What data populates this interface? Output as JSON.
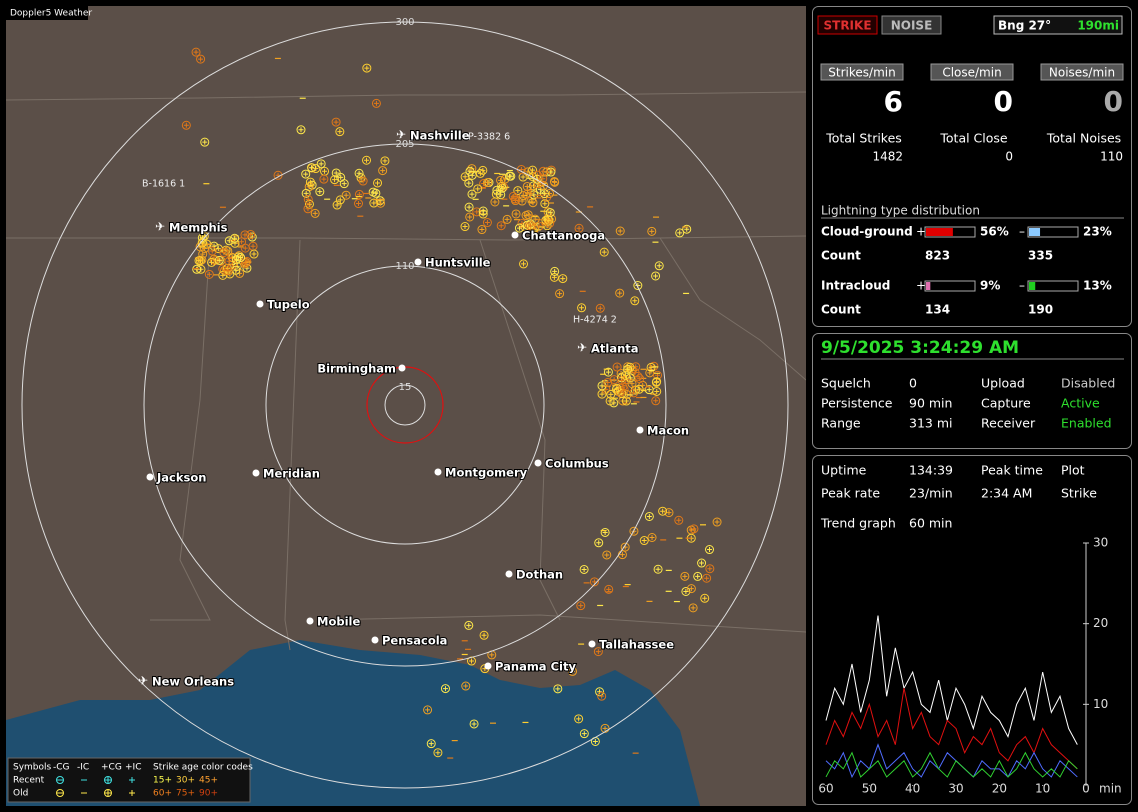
{
  "map": {
    "title": "Doppler5 Weather",
    "ring_labels": [
      "300",
      "205",
      "110",
      "15"
    ],
    "cities": [
      "Nashville",
      "Memphis",
      "Chattanooga",
      "Huntsville",
      "Tupelo",
      "Birmingham",
      "Atlanta",
      "Macon",
      "Jackson",
      "Meridian",
      "Montgomery",
      "Columbus",
      "Dothan",
      "Mobile",
      "Pensacola",
      "Panama City",
      "Tallahassee",
      "New Orleans"
    ],
    "stations": [
      "P-3382 6",
      "B-1616 1",
      "H-4274 2"
    ],
    "legend": {
      "symbols_header": "Symbols",
      "cols": [
        "-CG",
        "-IC",
        "+CG",
        "+IC"
      ],
      "age_header": "Strike age color codes",
      "rows": [
        {
          "label": "Recent",
          "ages": [
            "15+",
            "30+",
            "45+"
          ]
        },
        {
          "label": "Old",
          "ages": [
            "60+",
            "75+",
            "90+"
          ]
        }
      ]
    }
  },
  "panel": {
    "mode_buttons": [
      "STRIKE",
      "NOISE"
    ],
    "bearing": "Bng 27°",
    "range": "190mi",
    "rates": [
      {
        "label": "Strikes/min",
        "value": 6
      },
      {
        "label": "Close/min",
        "value": 0
      },
      {
        "label": "Noises/min",
        "value": 0
      }
    ],
    "totals": [
      {
        "label": "Total Strikes",
        "value": 1482
      },
      {
        "label": "Total Close",
        "value": 0
      },
      {
        "label": "Total Noises",
        "value": 110
      }
    ],
    "distribution": {
      "title": "Lightning type distribution",
      "count_label": "Count",
      "types": [
        {
          "label": "Cloud-ground",
          "pos": {
            "sign": "+",
            "share": {
              "value": 56,
              "label": "56%"
            },
            "count": 823
          },
          "neg": {
            "sign": "–",
            "share": {
              "value": 23,
              "label": "23%"
            },
            "count": 335
          }
        },
        {
          "label": "Intracloud",
          "pos": {
            "sign": "+",
            "share": {
              "value": 9,
              "label": "9%"
            },
            "count": 134
          },
          "neg": {
            "sign": "–",
            "share": {
              "value": 13,
              "label": "13%"
            },
            "count": 190
          }
        }
      ]
    }
  },
  "status": {
    "datetime": "9/5/2025 3:24:29 AM",
    "rows": [
      [
        "Squelch",
        "0",
        "Upload",
        "Disabled"
      ],
      [
        "Persistence",
        "90 min",
        "Capture",
        "Active"
      ],
      [
        "Range",
        "313 mi",
        "Receiver",
        "Enabled"
      ]
    ]
  },
  "stats": {
    "rows": [
      [
        "Uptime",
        "134:39",
        "Peak time",
        "Plot"
      ],
      [
        "Peak rate",
        "23/min",
        "2:34 AM",
        "Strike"
      ]
    ],
    "trend_label": "Trend graph",
    "trend_window": "60 min"
  },
  "chart_data": {
    "type": "line",
    "x_label": "min",
    "xlim": [
      60,
      0
    ],
    "xticks": [
      60,
      50,
      40,
      30,
      20,
      10,
      0
    ],
    "ylim": [
      0,
      30
    ],
    "yticks": [
      10,
      20,
      30
    ],
    "x": [
      60,
      58,
      56,
      54,
      52,
      50,
      48,
      46,
      44,
      42,
      40,
      38,
      36,
      34,
      32,
      30,
      28,
      26,
      24,
      22,
      20,
      18,
      16,
      14,
      12,
      10,
      8,
      6,
      4,
      2
    ],
    "series": [
      {
        "color": "#ffffff",
        "values": [
          8,
          12,
          10,
          15,
          9,
          13,
          21,
          11,
          17,
          12,
          14,
          10,
          9,
          13,
          8,
          12,
          10,
          7,
          11,
          9,
          8,
          6,
          10,
          12,
          8,
          14,
          9,
          11,
          7,
          5
        ]
      },
      {
        "color": "#e01010",
        "values": [
          5,
          8,
          6,
          9,
          7,
          10,
          6,
          8,
          5,
          12,
          7,
          9,
          6,
          5,
          8,
          7,
          4,
          6,
          5,
          7,
          4,
          3,
          5,
          6,
          4,
          7,
          5,
          4,
          3,
          2
        ]
      },
      {
        "color": "#4f6cff",
        "values": [
          3,
          2,
          4,
          1,
          3,
          2,
          5,
          2,
          3,
          4,
          2,
          1,
          3,
          2,
          4,
          3,
          2,
          1,
          3,
          2,
          2,
          1,
          3,
          2,
          4,
          2,
          1,
          3,
          2,
          1
        ]
      },
      {
        "color": "#30d030",
        "values": [
          1,
          3,
          2,
          4,
          1,
          2,
          3,
          1,
          2,
          3,
          1,
          2,
          4,
          2,
          1,
          3,
          2,
          1,
          2,
          1,
          3,
          1,
          2,
          4,
          2,
          1,
          2,
          1,
          3,
          2
        ]
      }
    ]
  }
}
